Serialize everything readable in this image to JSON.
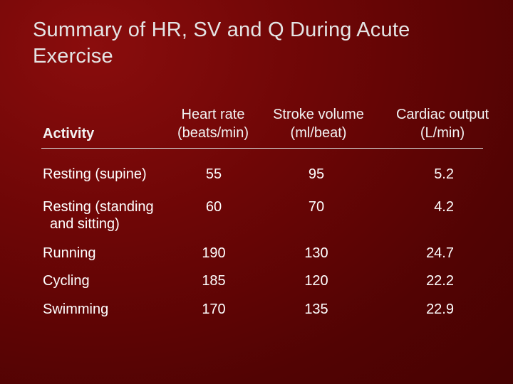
{
  "slide": {
    "title": "Summary of HR, SV and Q During Acute Exercise"
  },
  "table": {
    "headers": {
      "activity": "Activity",
      "heart_rate": [
        "Heart rate",
        "(beats/min)"
      ],
      "stroke_volume": [
        "Stroke volume",
        "(ml/beat)"
      ],
      "cardiac_output": [
        "Cardiac output",
        "(L/min)"
      ]
    },
    "rows": [
      {
        "activity": [
          "Resting (supine)"
        ],
        "heart_rate": "55",
        "stroke_volume": "95",
        "cardiac_output": "5.2"
      },
      {
        "activity": [
          "Resting (standing",
          "and sitting)"
        ],
        "heart_rate": "60",
        "stroke_volume": "70",
        "cardiac_output": "4.2"
      },
      {
        "activity": [
          "Running"
        ],
        "heart_rate": "190",
        "stroke_volume": "130",
        "cardiac_output": "24.7"
      },
      {
        "activity": [
          "Cycling"
        ],
        "heart_rate": "185",
        "stroke_volume": "120",
        "cardiac_output": "22.2"
      },
      {
        "activity": [
          "Swimming"
        ],
        "heart_rate": "170",
        "stroke_volume": "135",
        "cardiac_output": "22.9"
      }
    ]
  }
}
